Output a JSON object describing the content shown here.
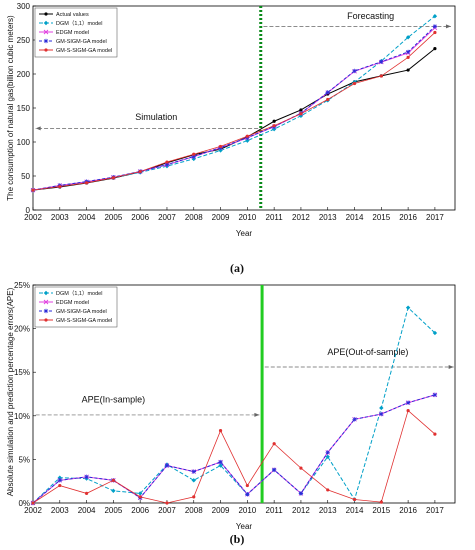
{
  "colors": {
    "actual": "#000000",
    "dgm": "#00a0c8",
    "edgm": "#e040e0",
    "gm_sigm_ga": "#2a2ad8",
    "gm_s_sigm_ga": "#e03030",
    "boundary_a": "#0a8a1a",
    "boundary_b": "#22cc22",
    "arrow": "#666666"
  },
  "chart_data": [
    {
      "type": "line",
      "panel_caption": "(a)",
      "title": "",
      "xlabel": "Year",
      "ylabel": "The consumption of natural gas(billion cubic meters)",
      "x": [
        2002,
        2003,
        2004,
        2005,
        2006,
        2007,
        2008,
        2009,
        2010,
        2011,
        2012,
        2013,
        2014,
        2015,
        2016,
        2017
      ],
      "xlim": [
        2002,
        2017.75
      ],
      "ylim": [
        0,
        300
      ],
      "yticks": [
        0,
        50,
        100,
        150,
        200,
        250,
        300
      ],
      "boundary_x": 2010.5,
      "legend_position": "top-left",
      "annotations": [
        {
          "text": "Simulation",
          "label_x": 2006.6,
          "label_y": 132,
          "from_x": 2010.4,
          "to_x": 2002.1,
          "y": 120
        },
        {
          "text": "Forecasting",
          "label_x": 2014.6,
          "label_y": 281,
          "from_x": 2010.6,
          "to_x": 2017.6,
          "y": 270
        }
      ],
      "series": [
        {
          "name": "Actual values",
          "color_key": "actual",
          "dash": "",
          "marker": "dot",
          "values": [
            29.2,
            33.9,
            39.7,
            46.8,
            56.1,
            69.5,
            81.3,
            89.5,
            107.5,
            130.5,
            147.1,
            170.5,
            188.4,
            197.3,
            205.8,
            237.3
          ]
        },
        {
          "name": "DGM（1,1）model",
          "color_key": "dgm",
          "dash": "4,2",
          "marker": "diamond",
          "values": [
            29.2,
            35.0,
            40.8,
            47.5,
            55.3,
            64.5,
            75.2,
            87.6,
            102.0,
            118.9,
            138.5,
            161.3,
            188.0,
            219.0,
            254.0,
            285.0
          ]
        },
        {
          "name": "EDGM model",
          "color_key": "edgm",
          "dash": "",
          "marker": "cross",
          "values": [
            29.2,
            36.0,
            41.5,
            48.0,
            56.5,
            66.5,
            78.5,
            91.5,
            106.0,
            122.5,
            142.0,
            172.5,
            204.0,
            217.5,
            231.0,
            268.0
          ]
        },
        {
          "name": "GM-SIGM-GA model",
          "color_key": "gm_sigm_ga",
          "dash": "3,2",
          "marker": "star",
          "values": [
            29.2,
            36.2,
            41.8,
            48.3,
            56.8,
            66.8,
            78.8,
            91.8,
            106.5,
            122.8,
            142.3,
            173.0,
            204.5,
            218.0,
            232.5,
            270.0
          ]
        },
        {
          "name": "GM-S-SIGM-GA model",
          "color_key": "gm_s_sigm_ga",
          "dash": "",
          "marker": "dot",
          "values": [
            29.2,
            34.5,
            40.0,
            47.5,
            56.5,
            70.5,
            82.0,
            93.5,
            108.5,
            124.0,
            141.5,
            162.5,
            186.0,
            197.0,
            224.5,
            261.0
          ]
        }
      ]
    },
    {
      "type": "line",
      "panel_caption": "(b)",
      "title": "",
      "xlabel": "Year",
      "ylabel": "Absolute simulation and prediction percentage errors(APE)",
      "x": [
        2002,
        2003,
        2004,
        2005,
        2006,
        2007,
        2008,
        2009,
        2010,
        2011,
        2012,
        2013,
        2014,
        2015,
        2016,
        2017
      ],
      "xlim": [
        2002,
        2017.75
      ],
      "ylim": [
        0,
        25
      ],
      "yticks": [
        0,
        5,
        10,
        15,
        20,
        25
      ],
      "ytick_suffix": "%",
      "boundary_x": 2010.55,
      "legend_position": "top-left",
      "annotations": [
        {
          "text": "APE(In-sample)",
          "label_x": 2005.0,
          "label_y": 11.5,
          "from_x": 2002.1,
          "to_x": 2010.45,
          "y": 10.1
        },
        {
          "text": "APE(Out-of-sample)",
          "label_x": 2014.5,
          "label_y": 17.0,
          "from_x": 2010.65,
          "to_x": 2017.7,
          "y": 15.6
        }
      ],
      "series": [
        {
          "name": "DGM（1,1）model",
          "color_key": "dgm",
          "dash": "4,2",
          "marker": "diamond",
          "values": [
            0.0,
            2.9,
            2.8,
            1.4,
            1.1,
            4.4,
            2.6,
            4.3,
            1.0,
            3.8,
            1.1,
            5.3,
            0.4,
            10.9,
            22.4,
            19.5
          ]
        },
        {
          "name": "EDGM model",
          "color_key": "edgm",
          "dash": "",
          "marker": "cross",
          "values": [
            0.0,
            2.6,
            3.0,
            2.6,
            0.6,
            4.3,
            3.6,
            4.7,
            1.0,
            3.8,
            1.1,
            5.8,
            9.6,
            10.2,
            11.5,
            12.4
          ]
        },
        {
          "name": "GM-SIGM-GA model",
          "color_key": "gm_sigm_ga",
          "dash": "3,2",
          "marker": "star",
          "values": [
            0.0,
            2.6,
            3.0,
            2.6,
            0.6,
            4.3,
            3.6,
            4.7,
            1.0,
            3.8,
            1.1,
            5.8,
            9.6,
            10.2,
            11.5,
            12.4
          ]
        },
        {
          "name": "GM-S-SIGM-GA model",
          "color_key": "gm_s_sigm_ga",
          "dash": "",
          "marker": "dot",
          "values": [
            0.0,
            2.0,
            1.1,
            2.6,
            0.7,
            0.0,
            0.7,
            8.3,
            2.0,
            6.8,
            4.0,
            1.5,
            0.4,
            0.1,
            10.6,
            7.9
          ]
        }
      ]
    }
  ]
}
